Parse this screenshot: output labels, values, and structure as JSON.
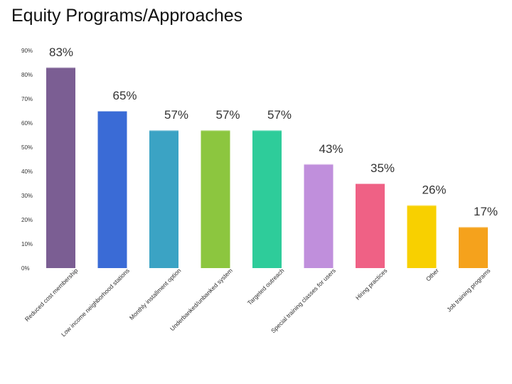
{
  "title": "Equity Programs/Approaches",
  "chart_data": {
    "type": "bar",
    "title": "Equity Programs/Approaches",
    "xlabel": "",
    "ylabel": "",
    "ylim": [
      0,
      90
    ],
    "yticks": [
      "0%",
      "10%",
      "20%",
      "30%",
      "40%",
      "50%",
      "60%",
      "70%",
      "80%",
      "90%"
    ],
    "categories": [
      "Reduced cost membership",
      "Low income neighborhood stations",
      "Monthly installment option",
      "Underbanked/unbanked system",
      "Targeted outreach",
      "Special training classes for users",
      "Hiring practices",
      "Other",
      "Job training programs"
    ],
    "values": [
      83,
      65,
      57,
      57,
      57,
      43,
      35,
      26,
      17
    ],
    "labels": [
      "83%",
      "65%",
      "57%",
      "57%",
      "57%",
      "43%",
      "35%",
      "26%",
      "17%"
    ],
    "colors": [
      "#7b5e93",
      "#3a6bd6",
      "#3ba3c4",
      "#8cc63f",
      "#2ecc9a",
      "#c08fdc",
      "#ef6185",
      "#f8d000",
      "#f5a21c"
    ]
  }
}
